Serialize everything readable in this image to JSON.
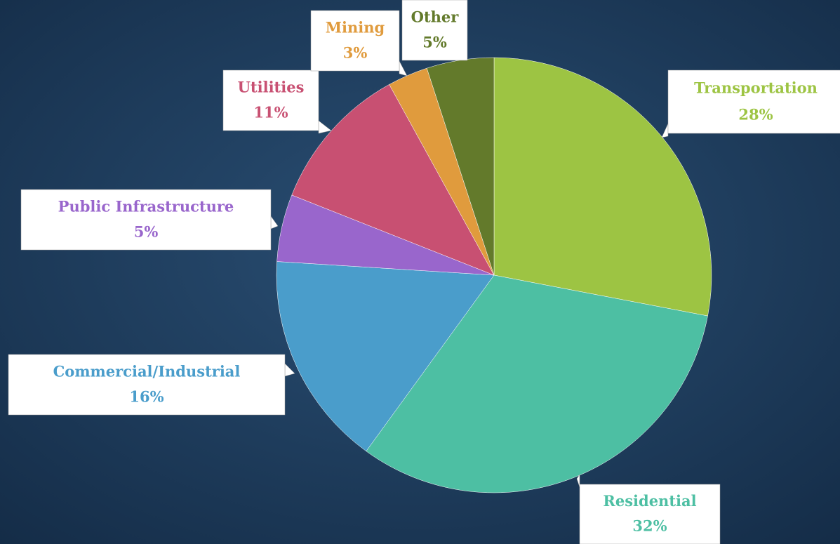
{
  "chart_data": {
    "type": "pie",
    "categories": [
      "Transportation",
      "Residential",
      "Commercial/Industrial",
      "Public Infrastructure",
      "Utilities",
      "Mining",
      "Other"
    ],
    "values": [
      28,
      32,
      16,
      5,
      11,
      3,
      5
    ],
    "value_labels": [
      "28%",
      "32%",
      "16%",
      "5%",
      "11%",
      "3%",
      "5%"
    ],
    "colors": [
      "#9dc443",
      "#4dbfa3",
      "#4a9dcb",
      "#9966cc",
      "#c85072",
      "#e09b3d",
      "#637a2b"
    ]
  }
}
